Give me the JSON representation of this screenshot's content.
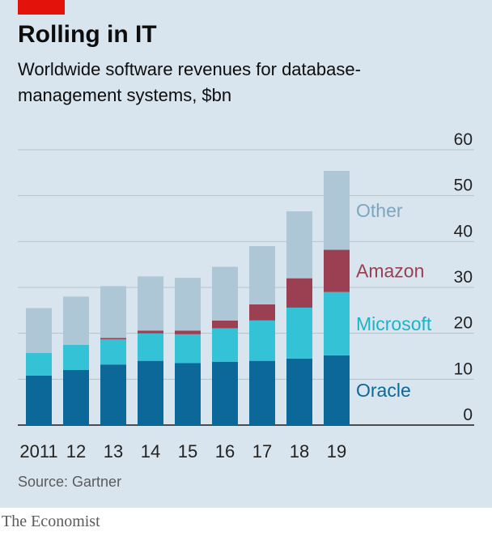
{
  "header": {
    "title": "Rolling in IT",
    "subtitle": "Worldwide software revenues for database-management systems, $bn"
  },
  "source": "Source: Gartner",
  "brand": "The Economist",
  "colors": {
    "background": "#d8e5ee",
    "accent": "#e3120b",
    "Oracle": "#0b6898",
    "Microsoft": "#34c2d6",
    "Amazon": "#9b4052",
    "Other": "#aec7d7"
  },
  "chart_data": {
    "type": "bar",
    "stacked": true,
    "title": "Rolling in IT",
    "subtitle": "Worldwide software revenues for database-management systems, $bn",
    "categories": [
      "2011",
      "12",
      "13",
      "14",
      "15",
      "16",
      "17",
      "18",
      "19"
    ],
    "series": [
      {
        "name": "Oracle",
        "values": [
          10.8,
          12.0,
          13.2,
          14.0,
          13.5,
          13.8,
          14.0,
          14.5,
          15.2
        ]
      },
      {
        "name": "Microsoft",
        "values": [
          4.9,
          5.5,
          5.5,
          6.0,
          6.3,
          7.3,
          8.8,
          11.1,
          13.8
        ]
      },
      {
        "name": "Amazon",
        "values": [
          0.0,
          0.0,
          0.3,
          0.6,
          0.8,
          1.7,
          3.5,
          6.4,
          9.2
        ]
      },
      {
        "name": "Other",
        "values": [
          9.8,
          10.5,
          11.3,
          11.8,
          11.5,
          11.7,
          12.7,
          14.6,
          17.2
        ]
      }
    ],
    "yaxis": {
      "min": 0,
      "max": 60,
      "ticks": [
        0,
        10,
        20,
        30,
        40,
        50,
        60
      ],
      "position": "right"
    },
    "xlabel": "",
    "ylabel": "",
    "grid": true,
    "legend": "inline labels on right, level with the 2019 bar segments"
  }
}
